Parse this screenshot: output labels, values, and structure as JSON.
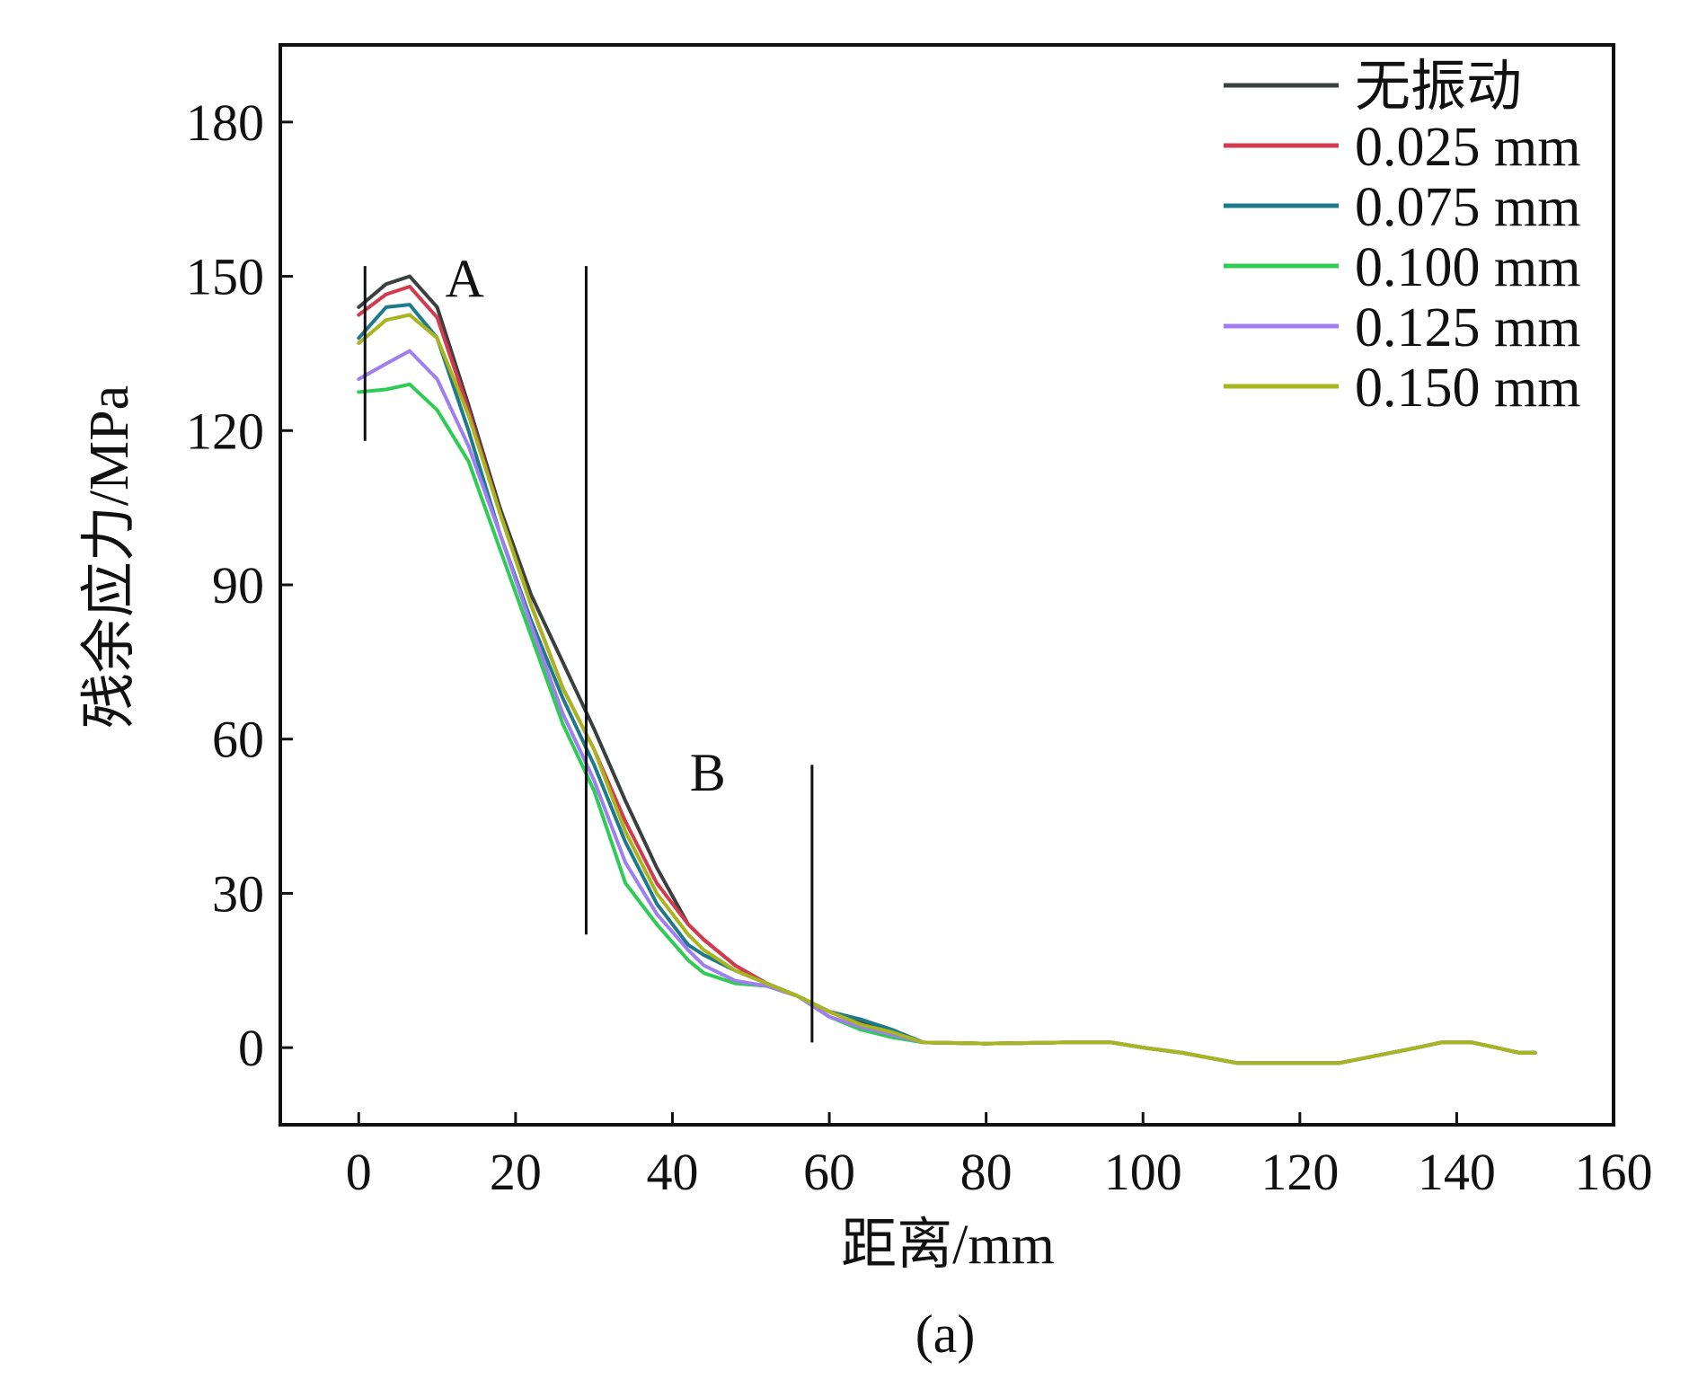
{
  "chart_data": {
    "type": "line",
    "title": "",
    "xlabel": "距离/mm",
    "ylabel": "残余应力/MPa",
    "caption": "(a)",
    "xlim": [
      -10,
      160
    ],
    "ylim": [
      -15,
      195
    ],
    "xticks": [
      0,
      20,
      40,
      60,
      80,
      100,
      120,
      140,
      160
    ],
    "yticks": [
      0,
      30,
      60,
      90,
      120,
      150,
      180
    ],
    "grid": false,
    "legend_position": "top-right",
    "region_labels": [
      {
        "text": "A",
        "x": 13.5,
        "y": 146
      },
      {
        "text": "B",
        "x": 44.5,
        "y": 50
      }
    ],
    "markers": [
      {
        "x": 0.8,
        "y1": 118,
        "y2": 152
      },
      {
        "x": 29,
        "y1": 22,
        "y2": 152
      },
      {
        "x": 57.8,
        "y1": 1,
        "y2": 55
      }
    ],
    "series": [
      {
        "name": "无振动",
        "color": "#3a3f3f",
        "x": [
          0,
          3.5,
          6.5,
          10,
          14,
          18,
          22,
          26,
          30,
          34,
          38,
          42,
          44,
          48,
          52,
          56,
          60,
          64,
          68,
          72,
          80,
          90,
          96,
          100,
          105,
          112,
          118,
          125,
          130,
          135,
          138,
          142,
          145,
          148,
          150
        ],
        "y": [
          144,
          148.5,
          150,
          144,
          125,
          105,
          88,
          75,
          62,
          48,
          35,
          24,
          21,
          16,
          12.5,
          10,
          7,
          5,
          3,
          1,
          0.8,
          1,
          1,
          0,
          -1,
          -3,
          -3,
          -3,
          -1.5,
          0,
          1,
          1,
          0,
          -1,
          -1
        ]
      },
      {
        "name": "0.025 mm",
        "color": "#d23a4f",
        "x": [
          0,
          3.5,
          6.5,
          10,
          14,
          18,
          22,
          26,
          30,
          34,
          38,
          42,
          44,
          48,
          52,
          56,
          60,
          64,
          68,
          72,
          80,
          90,
          96,
          100,
          105,
          112,
          118,
          125,
          130,
          135,
          138,
          142,
          145,
          148,
          150
        ],
        "y": [
          142.5,
          146.5,
          148,
          142,
          124,
          104,
          86,
          70,
          58,
          44,
          32,
          24,
          21,
          16,
          12.5,
          10,
          7,
          4.5,
          2.5,
          1,
          0.8,
          1,
          1,
          0,
          -1,
          -3,
          -3,
          -3,
          -1.5,
          0,
          1,
          1,
          0,
          -1,
          -1
        ]
      },
      {
        "name": "0.075 mm",
        "color": "#1e7a8a",
        "x": [
          0,
          3.5,
          6.5,
          10,
          14,
          18,
          22,
          26,
          30,
          34,
          38,
          42,
          44,
          48,
          52,
          56,
          60,
          64,
          68,
          72,
          80,
          90,
          96,
          100,
          105,
          112,
          118,
          125,
          130,
          135,
          138,
          142,
          145,
          148,
          150
        ],
        "y": [
          138,
          144,
          144.5,
          138,
          120,
          100,
          83,
          68,
          55,
          40,
          28,
          20,
          18,
          15,
          12.5,
          10,
          7,
          5.5,
          3.5,
          1,
          0.8,
          1,
          1,
          0,
          -1,
          -3,
          -3,
          -3,
          -1.5,
          0,
          1,
          1,
          0,
          -1,
          -1
        ]
      },
      {
        "name": "0.100 mm",
        "color": "#2ecc55",
        "x": [
          0,
          3.5,
          6.5,
          10,
          14,
          18,
          22,
          26,
          30,
          34,
          38,
          42,
          44,
          48,
          52,
          56,
          60,
          64,
          68,
          72,
          80,
          90,
          96,
          100,
          105,
          112,
          118,
          125,
          130,
          135,
          138,
          142,
          145,
          148,
          150
        ],
        "y": [
          127.5,
          128,
          129,
          124,
          114,
          97,
          80,
          63,
          50,
          32,
          24,
          17,
          14.5,
          12.5,
          12,
          10,
          6,
          3.5,
          2,
          1,
          0.8,
          1,
          1,
          0,
          -1,
          -3,
          -3,
          -3,
          -1.5,
          0,
          1,
          1,
          0,
          -1,
          -1
        ]
      },
      {
        "name": "0.125 mm",
        "color": "#a07ef0",
        "x": [
          0,
          3.5,
          6.5,
          10,
          14,
          18,
          22,
          26,
          30,
          34,
          38,
          42,
          44,
          48,
          52,
          56,
          60,
          64,
          68,
          72,
          80,
          90,
          96,
          100,
          105,
          112,
          118,
          125,
          130,
          135,
          138,
          142,
          145,
          148,
          150
        ],
        "y": [
          130,
          133,
          135.5,
          130,
          117,
          100,
          82,
          65,
          52,
          36,
          26,
          19,
          16,
          13,
          12,
          10,
          6,
          4,
          2.5,
          1,
          0.8,
          1,
          1,
          0,
          -1,
          -3,
          -3,
          -3,
          -1.5,
          0,
          1,
          1,
          0,
          -1,
          -1
        ]
      },
      {
        "name": "0.150 mm",
        "color": "#a9b51e",
        "x": [
          0,
          3.5,
          6.5,
          10,
          14,
          18,
          22,
          26,
          30,
          34,
          38,
          42,
          44,
          48,
          52,
          56,
          60,
          64,
          68,
          72,
          80,
          90,
          96,
          100,
          105,
          112,
          118,
          125,
          130,
          135,
          138,
          142,
          145,
          148,
          150
        ],
        "y": [
          137,
          141.5,
          142.5,
          138,
          123,
          104,
          86,
          70,
          58,
          42,
          30,
          22,
          19,
          15,
          12.5,
          10,
          7,
          4.5,
          3,
          1,
          0.8,
          1,
          1,
          0,
          -1,
          -3,
          -3,
          -3,
          -1.5,
          0,
          1,
          1,
          0,
          -1,
          -1
        ]
      }
    ]
  }
}
